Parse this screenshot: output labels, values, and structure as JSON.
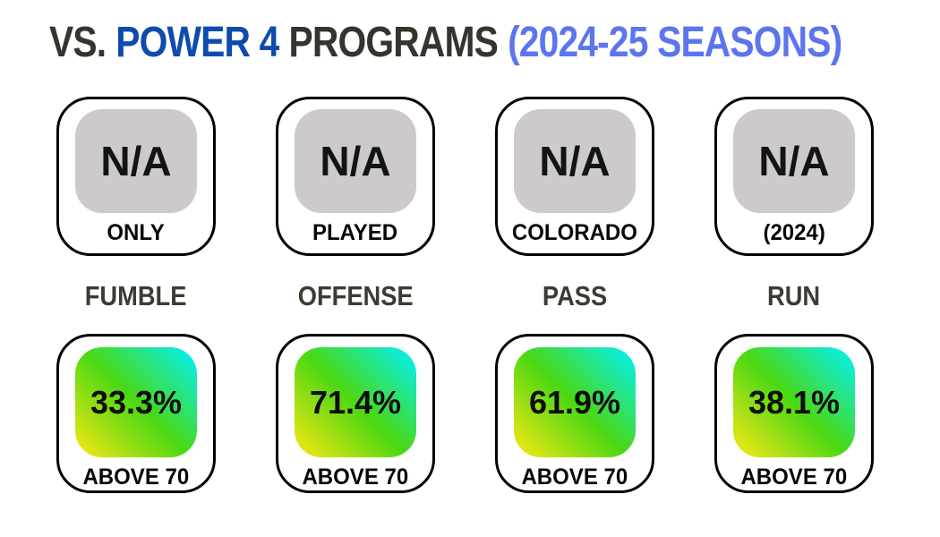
{
  "title": {
    "part1": "VS.",
    "part2": "POWER 4",
    "part3": "PROGRAMS",
    "part4": "(2024-25 SEASONS)"
  },
  "colors": {
    "title_dark": "#33362c",
    "title_blue": "#0e4bad",
    "title_light_blue": "#5c75ee",
    "na_tile_bg": "#cdc9cc",
    "gradient_start": "#ffe714",
    "gradient_mid": "#4ad813",
    "gradient_end": "#00f2ff",
    "card_border": "#000000",
    "category_text": "#3a3d31"
  },
  "columns": [
    {
      "category": "FUMBLE",
      "top": {
        "value": "N/A",
        "label": "ONLY"
      },
      "bottom": {
        "value": "33.3%",
        "label": "ABOVE 70"
      }
    },
    {
      "category": "OFFENSE",
      "top": {
        "value": "N/A",
        "label": "PLAYED"
      },
      "bottom": {
        "value": "71.4%",
        "label": "ABOVE 70"
      }
    },
    {
      "category": "PASS",
      "top": {
        "value": "N/A",
        "label": "COLORADO"
      },
      "bottom": {
        "value": "61.9%",
        "label": "ABOVE 70"
      }
    },
    {
      "category": "RUN",
      "top": {
        "value": "N/A",
        "label": "(2024)"
      },
      "bottom": {
        "value": "38.1%",
        "label": "ABOVE 70"
      }
    }
  ],
  "chart_data": {
    "type": "table",
    "title": "VS. POWER 4 PROGRAMS (2024-25 SEASONS)",
    "categories": [
      "FUMBLE",
      "OFFENSE",
      "PASS",
      "RUN"
    ],
    "series": [
      {
        "name": "top-row-values",
        "values": [
          "N/A",
          "N/A",
          "N/A",
          "N/A"
        ],
        "sub_labels": [
          "ONLY",
          "PLAYED",
          "COLORADO",
          "(2024)"
        ]
      },
      {
        "name": "above-70-percentages",
        "values": [
          33.3,
          71.4,
          61.9,
          38.1
        ],
        "sub_labels": [
          "ABOVE 70",
          "ABOVE 70",
          "ABOVE 70",
          "ABOVE 70"
        ]
      }
    ],
    "layout_hints": {
      "grid": "4 columns x 2 stat cards",
      "value_format": "percent (bottom row)",
      "tile_styles": [
        "gray = N/A",
        "yellow-green-cyan gradient = percentage"
      ]
    }
  }
}
